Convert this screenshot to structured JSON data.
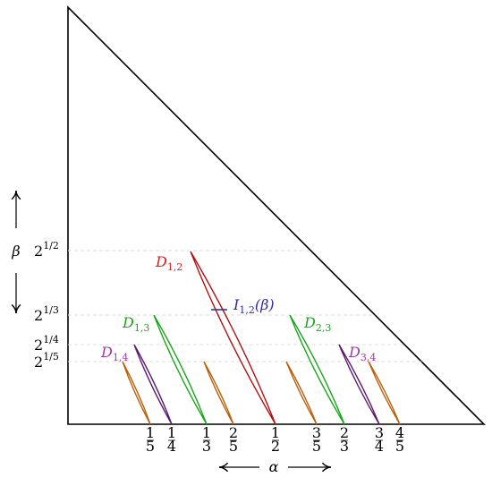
{
  "axes": {
    "x_label": "α",
    "y_label": "β"
  },
  "x_ticks": [
    {
      "num": "1",
      "den": "5"
    },
    {
      "num": "1",
      "den": "4"
    },
    {
      "num": "1",
      "den": "3"
    },
    {
      "num": "2",
      "den": "5"
    },
    {
      "num": "1",
      "den": "2"
    },
    {
      "num": "3",
      "den": "5"
    },
    {
      "num": "2",
      "den": "3"
    },
    {
      "num": "3",
      "den": "4"
    },
    {
      "num": "4",
      "den": "5"
    }
  ],
  "y_ticks": [
    {
      "base": "2",
      "exp": "1/2"
    },
    {
      "base": "2",
      "exp": "1/3"
    },
    {
      "base": "2",
      "exp": "1/4"
    },
    {
      "base": "2",
      "exp": "1/5"
    }
  ],
  "regions": [
    {
      "base": "D",
      "sub": "1,2"
    },
    {
      "base": "D",
      "sub": "1,3"
    },
    {
      "base": "D",
      "sub": "2,3"
    },
    {
      "base": "D",
      "sub": "1,4"
    },
    {
      "base": "D",
      "sub": "3,4"
    }
  ],
  "interval": {
    "base": "I",
    "sub": "1,2",
    "arg": "(β)"
  }
}
